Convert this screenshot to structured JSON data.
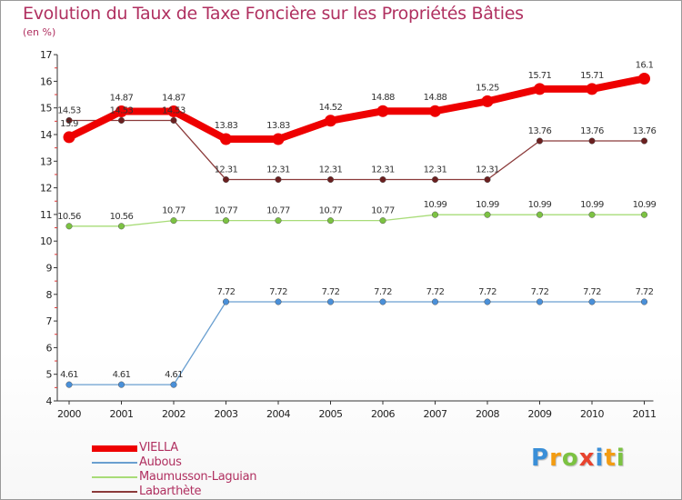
{
  "title": "Evolution du Taux de Taxe Foncière sur les Propriétés Bâties",
  "subtitle": "(en %)",
  "logo": {
    "letters": [
      {
        "char": "P",
        "color": "#3a8fd8"
      },
      {
        "char": "r",
        "color": "#f39c12"
      },
      {
        "char": "o",
        "color": "#7cc242"
      },
      {
        "char": "x",
        "color": "#e8432e"
      },
      {
        "char": "i",
        "color": "#3a8fd8"
      },
      {
        "char": "t",
        "color": "#f39c12"
      },
      {
        "char": "i",
        "color": "#7cc242"
      }
    ]
  },
  "chart_data": {
    "type": "line",
    "title": "Evolution du Taux de Taxe Foncière sur les Propriétés Bâties",
    "subtitle": "(en %)",
    "x": [
      "2000",
      "2001",
      "2002",
      "2003",
      "2004",
      "2005",
      "2006",
      "2007",
      "2008",
      "2009",
      "2010",
      "2011"
    ],
    "ylim": [
      4,
      17
    ],
    "yticks": [
      "4",
      "5",
      "6",
      "7",
      "8",
      "9",
      "10",
      "11",
      "12",
      "13",
      "14",
      "15",
      "16",
      "17"
    ],
    "legend_position": "bottom-left",
    "grid": false,
    "series": [
      {
        "name": "VIELLA",
        "color": "#ee0000",
        "marker_fill": "#ee0000",
        "emphasis": "bold",
        "values": [
          13.9,
          14.87,
          14.87,
          13.83,
          13.83,
          14.52,
          14.88,
          14.88,
          15.25,
          15.71,
          15.71,
          16.1
        ],
        "labels": [
          "13.9",
          "14.87",
          "14.87",
          "13.83",
          "13.83",
          "14.52",
          "14.88",
          "14.88",
          "15.25",
          "15.71",
          "15.71",
          "16.1"
        ]
      },
      {
        "name": "Aubous",
        "color": "#6a9fd0",
        "marker_fill": "#4a90d9",
        "emphasis": "normal",
        "values": [
          4.61,
          4.61,
          4.61,
          7.72,
          7.72,
          7.72,
          7.72,
          7.72,
          7.72,
          7.72,
          7.72,
          7.72
        ],
        "labels": [
          "4.61",
          "4.61",
          "4.61",
          "7.72",
          "7.72",
          "7.72",
          "7.72",
          "7.72",
          "7.72",
          "7.72",
          "7.72",
          "7.72"
        ]
      },
      {
        "name": "Maumusson-Laguian",
        "color": "#a8dc78",
        "marker_fill": "#7cc242",
        "emphasis": "normal",
        "values": [
          10.56,
          10.56,
          10.77,
          10.77,
          10.77,
          10.77,
          10.77,
          10.99,
          10.99,
          10.99,
          10.99,
          10.99
        ],
        "labels": [
          "10.56",
          "10.56",
          "10.77",
          "10.77",
          "10.77",
          "10.77",
          "10.77",
          "10.99",
          "10.99",
          "10.99",
          "10.99",
          "10.99"
        ]
      },
      {
        "name": "Labarthète",
        "color": "#8b3a3a",
        "marker_fill": "#6b2020",
        "emphasis": "normal",
        "values": [
          14.53,
          14.53,
          14.53,
          12.31,
          12.31,
          12.31,
          12.31,
          12.31,
          12.31,
          13.76,
          13.76,
          13.76
        ],
        "labels": [
          "14.53",
          "14.53",
          "14.53",
          "12.31",
          "12.31",
          "12.31",
          "12.31",
          "12.31",
          "12.31",
          "13.76",
          "13.76",
          "13.76"
        ]
      }
    ]
  }
}
